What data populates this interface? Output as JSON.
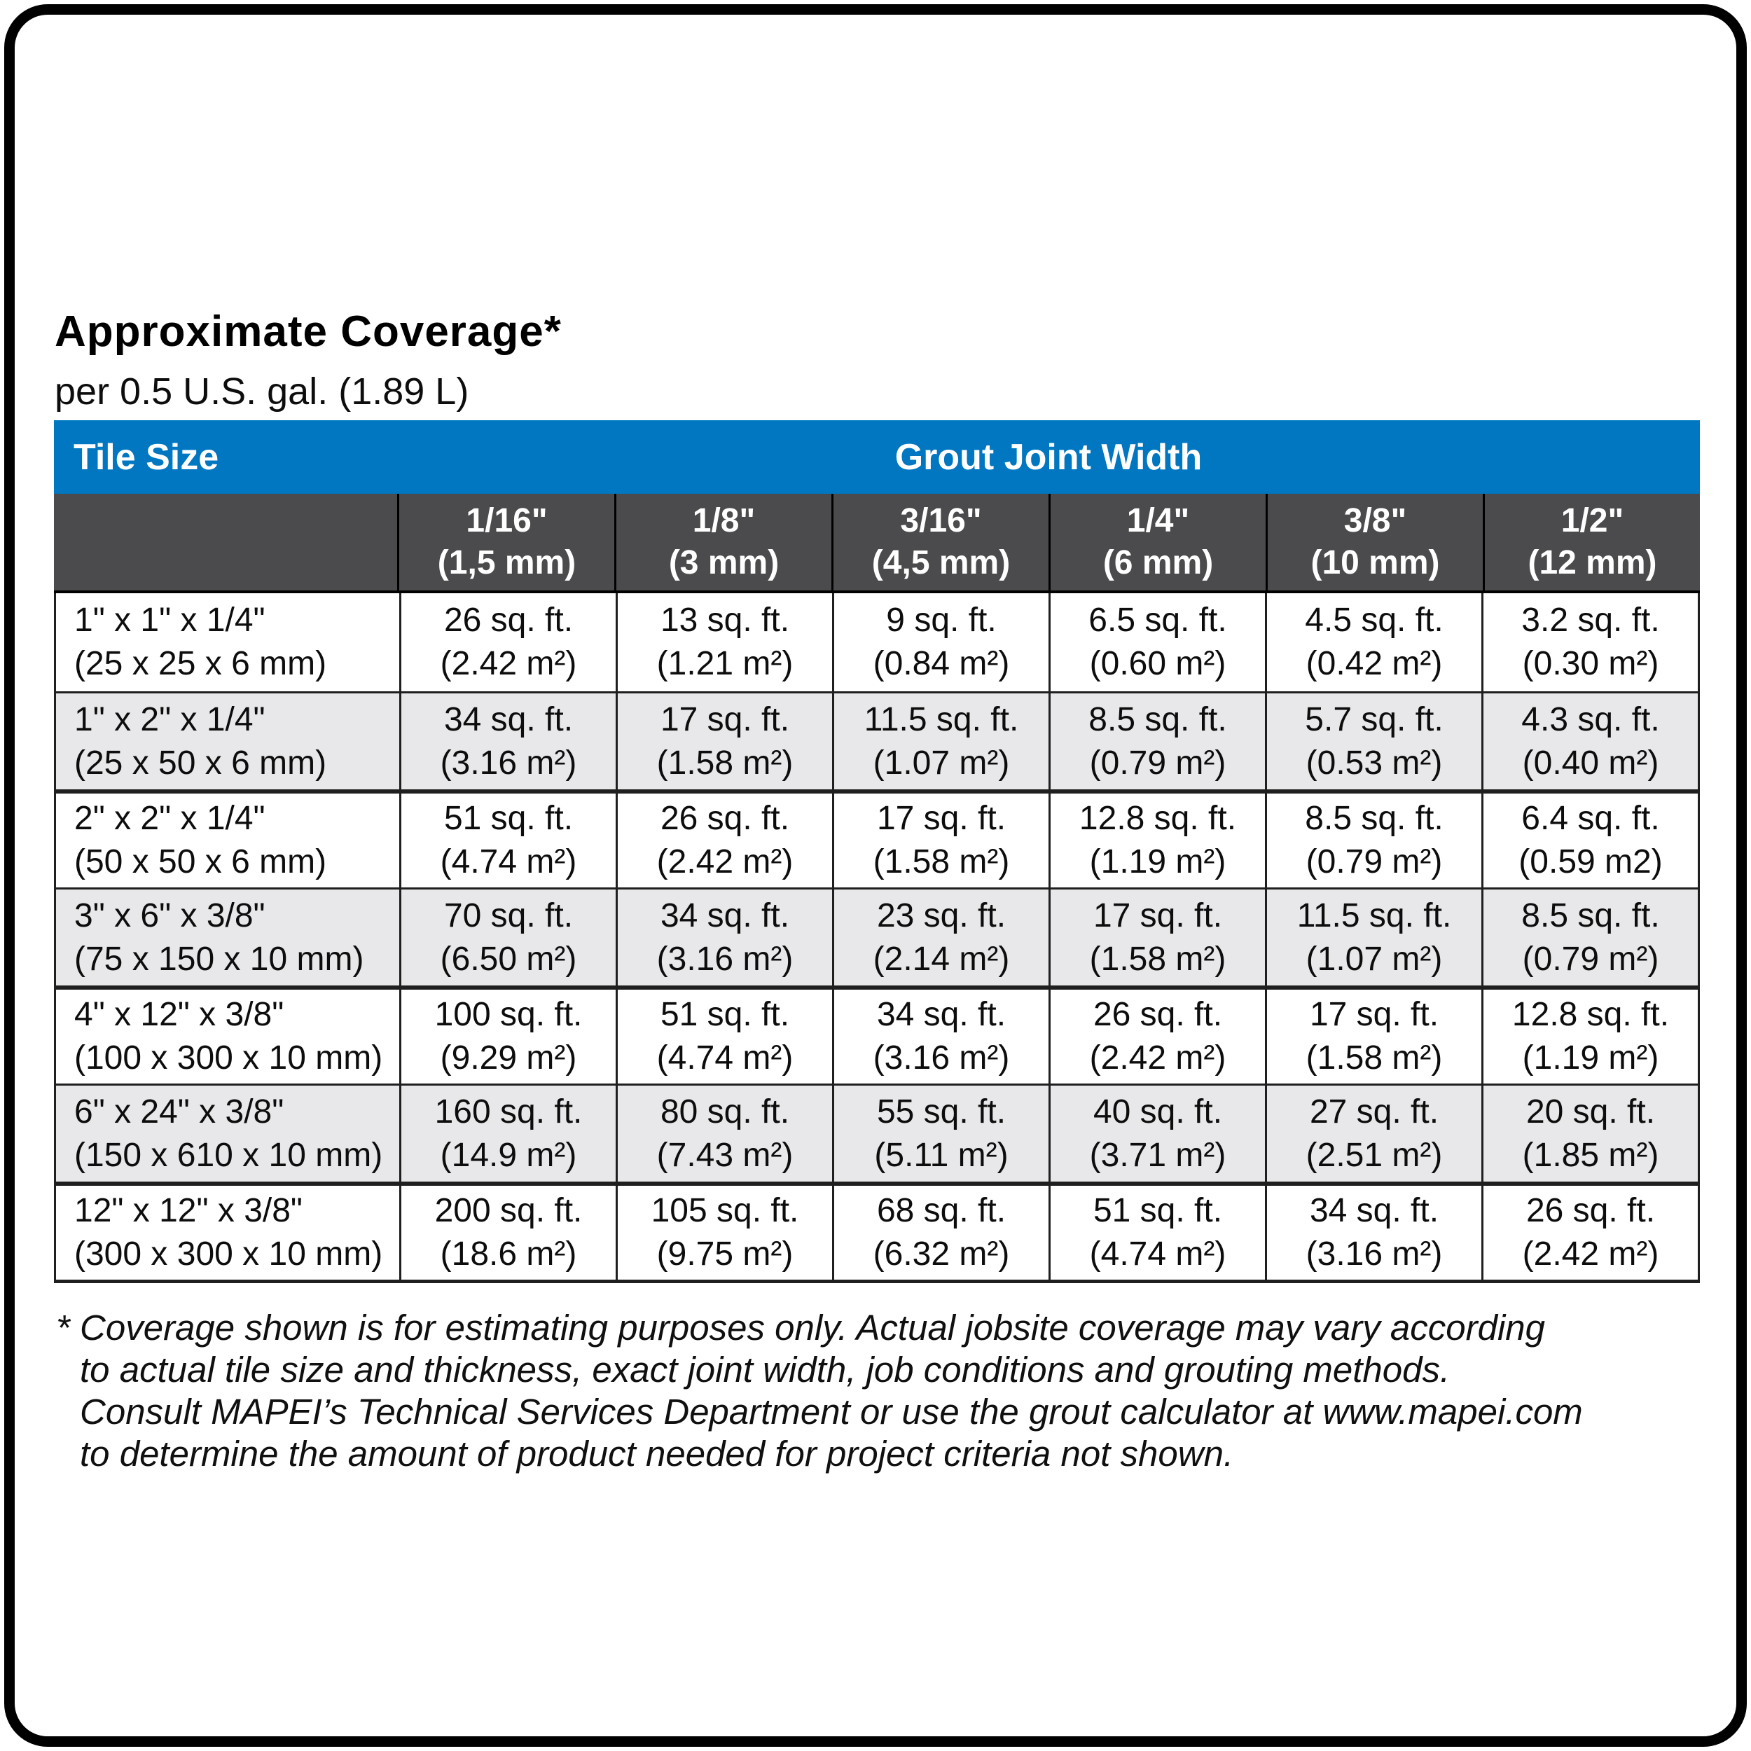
{
  "page": {
    "title": "Approximate Coverage*",
    "subtitle": "per 0.5 U.S. gal. (1.89 L)"
  },
  "colors": {
    "header_blue": "#0077c0",
    "header_dark": "#4b4b4d",
    "row_alt_gray": "#e8e8ea",
    "border": "#1f1f1f"
  },
  "table": {
    "corner_label": "Tile Size",
    "group_header": "Grout Joint Width",
    "columns": [
      {
        "width_in": "1/16\"",
        "width_mm": "(1,5 mm)"
      },
      {
        "width_in": "1/8\"",
        "width_mm": "(3 mm)"
      },
      {
        "width_in": "3/16\"",
        "width_mm": "(4,5 mm)"
      },
      {
        "width_in": "1/4\"",
        "width_mm": "(6 mm)"
      },
      {
        "width_in": "3/8\"",
        "width_mm": "(10 mm)"
      },
      {
        "width_in": "1/2\"",
        "width_mm": "(12 mm)"
      }
    ],
    "rows": [
      {
        "tile_in": "1\" x 1\" x 1/4\"",
        "tile_mm": "(25 x 25 x 6 mm)",
        "cells": [
          {
            "sqft": "26 sq. ft.",
            "m2": "(2.42 m²)"
          },
          {
            "sqft": "13 sq. ft.",
            "m2": "(1.21 m²)"
          },
          {
            "sqft": "9 sq. ft.",
            "m2": "(0.84 m²)"
          },
          {
            "sqft": "6.5 sq. ft.",
            "m2": "(0.60 m²)"
          },
          {
            "sqft": "4.5 sq. ft.",
            "m2": "(0.42 m²)"
          },
          {
            "sqft": "3.2 sq. ft.",
            "m2": "(0.30 m²)"
          }
        ]
      },
      {
        "tile_in": "1\" x 2\" x 1/4\"",
        "tile_mm": "(25 x 50 x 6 mm)",
        "cells": [
          {
            "sqft": "34 sq. ft.",
            "m2": "(3.16 m²)"
          },
          {
            "sqft": "17 sq. ft.",
            "m2": "(1.58 m²)"
          },
          {
            "sqft": "11.5 sq. ft.",
            "m2": "(1.07 m²)"
          },
          {
            "sqft": "8.5 sq. ft.",
            "m2": "(0.79 m²)"
          },
          {
            "sqft": "5.7 sq. ft.",
            "m2": "(0.53 m²)"
          },
          {
            "sqft": "4.3 sq. ft.",
            "m2": "(0.40 m²)"
          }
        ]
      },
      {
        "tile_in": "2\" x 2\" x 1/4\"",
        "tile_mm": "(50 x 50 x 6 mm)",
        "cells": [
          {
            "sqft": "51 sq. ft.",
            "m2": "(4.74 m²)"
          },
          {
            "sqft": "26 sq. ft.",
            "m2": "(2.42 m²)"
          },
          {
            "sqft": "17 sq. ft.",
            "m2": "(1.58 m²)"
          },
          {
            "sqft": "12.8 sq. ft.",
            "m2": "(1.19 m²)"
          },
          {
            "sqft": "8.5 sq. ft.",
            "m2": "(0.79 m²)"
          },
          {
            "sqft": "6.4 sq. ft.",
            "m2": "(0.59 m2)"
          }
        ]
      },
      {
        "tile_in": "3\" x 6\" x 3/8\"",
        "tile_mm": "(75 x 150 x 10 mm)",
        "cells": [
          {
            "sqft": "70 sq. ft.",
            "m2": "(6.50 m²)"
          },
          {
            "sqft": "34 sq. ft.",
            "m2": "(3.16 m²)"
          },
          {
            "sqft": "23 sq. ft.",
            "m2": "(2.14 m²)"
          },
          {
            "sqft": "17 sq. ft.",
            "m2": "(1.58 m²)"
          },
          {
            "sqft": "11.5 sq. ft.",
            "m2": "(1.07 m²)"
          },
          {
            "sqft": "8.5 sq. ft.",
            "m2": "(0.79 m²)"
          }
        ]
      },
      {
        "tile_in": "4\" x 12\" x 3/8\"",
        "tile_mm": "(100 x 300 x 10 mm)",
        "cells": [
          {
            "sqft": "100 sq. ft.",
            "m2": "(9.29 m²)"
          },
          {
            "sqft": "51 sq. ft.",
            "m2": "(4.74 m²)"
          },
          {
            "sqft": "34 sq. ft.",
            "m2": "(3.16 m²)"
          },
          {
            "sqft": "26 sq. ft.",
            "m2": "(2.42 m²)"
          },
          {
            "sqft": "17 sq. ft.",
            "m2": "(1.58 m²)"
          },
          {
            "sqft": "12.8 sq. ft.",
            "m2": "(1.19 m²)"
          }
        ]
      },
      {
        "tile_in": "6\" x 24\" x 3/8\"",
        "tile_mm": "(150 x 610 x 10 mm)",
        "cells": [
          {
            "sqft": "160 sq. ft.",
            "m2": "(14.9 m²)"
          },
          {
            "sqft": "80 sq. ft.",
            "m2": "(7.43 m²)"
          },
          {
            "sqft": "55 sq. ft.",
            "m2": "(5.11 m²)"
          },
          {
            "sqft": "40 sq. ft.",
            "m2": "(3.71 m²)"
          },
          {
            "sqft": "27 sq. ft.",
            "m2": "(2.51 m²)"
          },
          {
            "sqft": "20 sq. ft.",
            "m2": "(1.85 m²)"
          }
        ]
      },
      {
        "tile_in": "12\" x 12\" x 3/8\"",
        "tile_mm": "(300 x 300 x 10 mm)",
        "cells": [
          {
            "sqft": "200 sq. ft.",
            "m2": "(18.6 m²)"
          },
          {
            "sqft": "105 sq. ft.",
            "m2": "(9.75 m²)"
          },
          {
            "sqft": "68 sq. ft.",
            "m2": "(6.32 m²)"
          },
          {
            "sqft": "51 sq. ft.",
            "m2": "(4.74 m²)"
          },
          {
            "sqft": "34 sq. ft.",
            "m2": "(3.16 m²)"
          },
          {
            "sqft": "26 sq. ft.",
            "m2": "(2.42 m²)"
          }
        ]
      }
    ]
  },
  "footnote": {
    "lines": [
      "* Coverage shown is for estimating purposes only. Actual jobsite coverage may vary according",
      "to actual tile size and thickness, exact joint width, job conditions and grouting methods.",
      "Consult MAPEI’s Technical Services Department or use the grout calculator at www.mapei.com",
      "to determine the amount of product needed for project criteria not shown."
    ]
  }
}
